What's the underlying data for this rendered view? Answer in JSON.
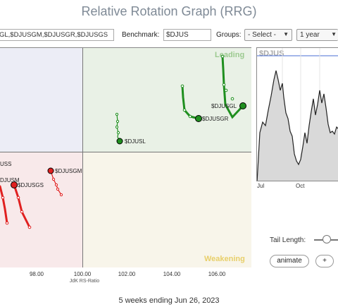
{
  "title": "Relative Rotation Graph (RRG)",
  "controls": {
    "symbols_value": "GL,$DJUSGM,$DJUSGR,$DJUSGS",
    "benchmark_label": "Benchmark:",
    "benchmark_value": "$DJUS",
    "groups_label": "Groups:",
    "groups_selected": "- Select -",
    "period_selected": "1 year"
  },
  "quadrants": {
    "leading": "Leading",
    "weakening": "Weakening"
  },
  "x_axis": {
    "title": "JdK RS-Ratio",
    "ticks": [
      "98.00",
      "100.00",
      "102.00",
      "104.00",
      "106.00"
    ]
  },
  "securities": [
    {
      "symbol": "$DJUSGL",
      "color": "#1f8f1f"
    },
    {
      "symbol": "$DJUSGR",
      "color": "#1f8f1f"
    },
    {
      "symbol": "$DJUSL",
      "color": "#1f8f1f"
    },
    {
      "symbol": "$DJUSGM",
      "color": "#e02020"
    },
    {
      "symbol": "$DJUSGS",
      "color": "#e02020"
    },
    {
      "symbol": "$DJUSM",
      "color": "#e02020",
      "visible_label": "DJUSM"
    },
    {
      "symbol": "$DJUSS",
      "color": "#e02020",
      "visible_label": "USS"
    }
  ],
  "mini_chart": {
    "symbol": "$DJUS",
    "x_ticks": [
      "Jul",
      "Oct"
    ]
  },
  "tail_length_label": "Tail Length:",
  "buttons": {
    "animate": "animate",
    "plus": "+"
  },
  "footer": "5 weeks ending Jun 26, 2023"
}
